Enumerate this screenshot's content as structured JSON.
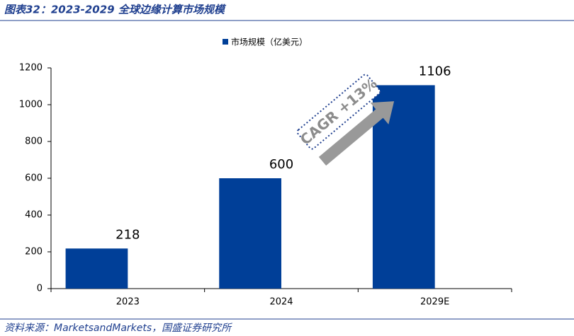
{
  "chart_data": {
    "type": "bar",
    "title": "图表32：2023-2029 全球边缘计算市场规模",
    "source": "资料来源：MarketsandMarkets，国盛证券研究所",
    "categories": [
      "2023",
      "2024",
      "2029E"
    ],
    "series": [
      {
        "name": "市场规模（亿美元）",
        "color": "#003f98",
        "values": [
          218,
          600,
          1106
        ]
      }
    ],
    "ylim": [
      0,
      1200
    ],
    "yticks": [
      0,
      200,
      400,
      600,
      800,
      1000,
      1200
    ],
    "grid": false,
    "legend": "top",
    "annotation": "CAGR +13%"
  }
}
